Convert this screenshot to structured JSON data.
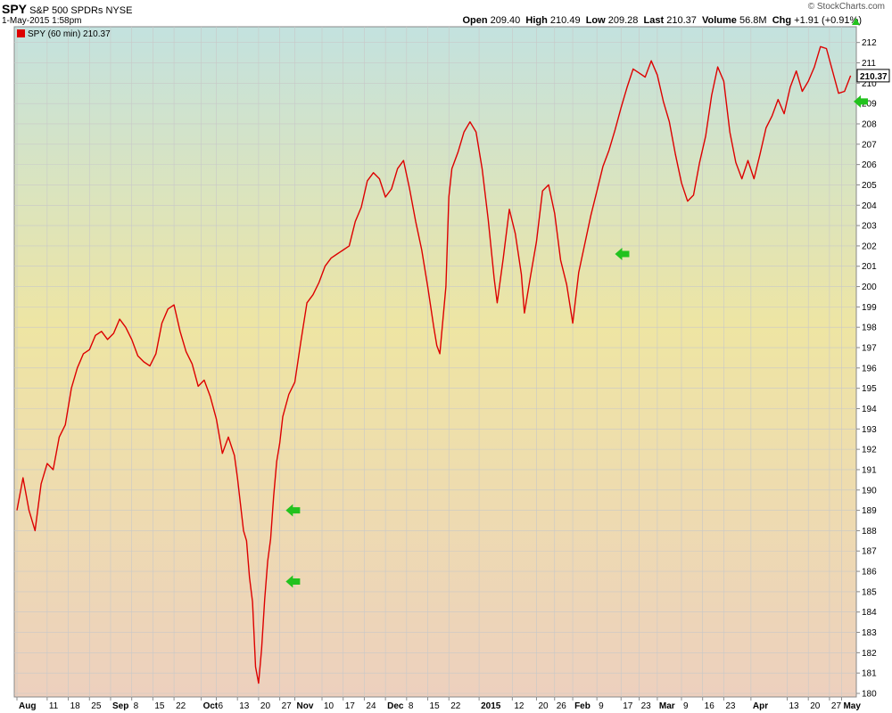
{
  "header": {
    "symbol": "SPY",
    "name": "S&P 500 SPDRs",
    "exchange": "NYSE",
    "datetime": "1-May-2015 1:58pm",
    "brand": "© StockCharts.com",
    "open_label": "Open",
    "open": "209.40",
    "high_label": "High",
    "high": "210.49",
    "low_label": "Low",
    "low": "209.28",
    "last_label": "Last",
    "last": "210.37",
    "volume_label": "Volume",
    "volume": "56.8M",
    "chg_label": "Chg",
    "chg": "+1.91 (+0.91%)",
    "legend": "SPY (60 min) 210.37"
  },
  "colors": {
    "series": "#dd0000",
    "arrow": "#22c21e",
    "grid": "#c8c8c8"
  },
  "chart_data": {
    "type": "line",
    "ylim": [
      180,
      212.6
    ],
    "yticks": [
      180,
      181,
      182,
      183,
      184,
      185,
      186,
      187,
      188,
      189,
      190,
      191,
      192,
      193,
      194,
      195,
      196,
      197,
      198,
      199,
      200,
      201,
      202,
      203,
      204,
      205,
      206,
      207,
      208,
      209,
      210,
      211,
      212
    ],
    "last_value": "210.37",
    "x_range_days": [
      0,
      277
    ],
    "xticks": [
      {
        "label": "Aug",
        "day": 0,
        "major": true
      },
      {
        "label": "11",
        "day": 10
      },
      {
        "label": "18",
        "day": 17
      },
      {
        "label": "25",
        "day": 24
      },
      {
        "label": "Sep",
        "day": 31,
        "major": true
      },
      {
        "label": "8",
        "day": 38
      },
      {
        "label": "15",
        "day": 45
      },
      {
        "label": "22",
        "day": 52
      },
      {
        "label": "Oct",
        "day": 61,
        "major": true
      },
      {
        "label": "6",
        "day": 66
      },
      {
        "label": "13",
        "day": 73
      },
      {
        "label": "20",
        "day": 80
      },
      {
        "label": "27",
        "day": 87
      },
      {
        "label": "Nov",
        "day": 92,
        "major": true
      },
      {
        "label": "10",
        "day": 101
      },
      {
        "label": "17",
        "day": 108
      },
      {
        "label": "24",
        "day": 115
      },
      {
        "label": "Dec",
        "day": 122,
        "major": true
      },
      {
        "label": "8",
        "day": 129
      },
      {
        "label": "15",
        "day": 136
      },
      {
        "label": "22",
        "day": 143
      },
      {
        "label": "2015",
        "day": 153,
        "major": true
      },
      {
        "label": "12",
        "day": 164
      },
      {
        "label": "20",
        "day": 172
      },
      {
        "label": "26",
        "day": 178
      },
      {
        "label": "Feb",
        "day": 184,
        "major": true
      },
      {
        "label": "9",
        "day": 192
      },
      {
        "label": "17",
        "day": 200
      },
      {
        "label": "23",
        "day": 206
      },
      {
        "label": "Mar",
        "day": 212,
        "major": true
      },
      {
        "label": "9",
        "day": 220
      },
      {
        "label": "16",
        "day": 227
      },
      {
        "label": "23",
        "day": 234
      },
      {
        "label": "Apr",
        "day": 243,
        "major": true
      },
      {
        "label": "13",
        "day": 255
      },
      {
        "label": "20",
        "day": 262
      },
      {
        "label": "27",
        "day": 269
      },
      {
        "label": "May",
        "day": 273,
        "major": true
      }
    ],
    "series": [
      {
        "name": "SPY (60 min)",
        "points": [
          [
            0,
            189
          ],
          [
            2,
            190.6
          ],
          [
            4,
            189
          ],
          [
            6,
            188
          ],
          [
            8,
            190.3
          ],
          [
            10,
            191.3
          ],
          [
            12,
            191
          ],
          [
            14,
            192.6
          ],
          [
            16,
            193.2
          ],
          [
            18,
            195
          ],
          [
            20,
            196
          ],
          [
            22,
            196.7
          ],
          [
            24,
            196.9
          ],
          [
            26,
            197.6
          ],
          [
            28,
            197.8
          ],
          [
            30,
            197.4
          ],
          [
            32,
            197.7
          ],
          [
            34,
            198.4
          ],
          [
            36,
            198
          ],
          [
            38,
            197.4
          ],
          [
            40,
            196.6
          ],
          [
            42,
            196.3
          ],
          [
            44,
            196.1
          ],
          [
            46,
            196.7
          ],
          [
            48,
            198.2
          ],
          [
            50,
            198.9
          ],
          [
            52,
            199.1
          ],
          [
            54,
            197.8
          ],
          [
            56,
            196.8
          ],
          [
            58,
            196.2
          ],
          [
            60,
            195.1
          ],
          [
            62,
            195.4
          ],
          [
            64,
            194.6
          ],
          [
            66,
            193.5
          ],
          [
            68,
            191.8
          ],
          [
            70,
            192.6
          ],
          [
            72,
            191.7
          ],
          [
            73,
            190.6
          ],
          [
            75,
            188
          ],
          [
            76,
            187.5
          ],
          [
            77,
            185.7
          ],
          [
            78,
            184.5
          ],
          [
            79,
            181.3
          ],
          [
            80,
            180.5
          ],
          [
            81,
            182.2
          ],
          [
            82,
            184.6
          ],
          [
            83,
            186.5
          ],
          [
            84,
            187.6
          ],
          [
            85,
            189.7
          ],
          [
            86,
            191.4
          ],
          [
            87,
            192.3
          ],
          [
            88,
            193.6
          ],
          [
            90,
            194.7
          ],
          [
            92,
            195.3
          ],
          [
            94,
            197.3
          ],
          [
            96,
            199.2
          ],
          [
            98,
            199.6
          ],
          [
            100,
            200.2
          ],
          [
            102,
            201
          ],
          [
            104,
            201.4
          ],
          [
            106,
            201.6
          ],
          [
            108,
            201.8
          ],
          [
            110,
            202
          ],
          [
            112,
            203.2
          ],
          [
            114,
            203.9
          ],
          [
            116,
            205.2
          ],
          [
            118,
            205.6
          ],
          [
            120,
            205.3
          ],
          [
            122,
            204.4
          ],
          [
            124,
            204.8
          ],
          [
            126,
            205.8
          ],
          [
            128,
            206.2
          ],
          [
            130,
            204.8
          ],
          [
            132,
            203.2
          ],
          [
            134,
            201.8
          ],
          [
            136,
            200
          ],
          [
            138,
            198
          ],
          [
            139,
            197.1
          ],
          [
            140,
            196.7
          ],
          [
            142,
            200
          ],
          [
            143,
            204.4
          ],
          [
            144,
            205.8
          ],
          [
            146,
            206.6
          ],
          [
            148,
            207.6
          ],
          [
            150,
            208.1
          ],
          [
            152,
            207.6
          ],
          [
            154,
            205.8
          ],
          [
            156,
            203.3
          ],
          [
            158,
            200.4
          ],
          [
            159,
            199.2
          ],
          [
            161,
            201.4
          ],
          [
            163,
            203.8
          ],
          [
            165,
            202.6
          ],
          [
            167,
            200.6
          ],
          [
            168,
            198.7
          ],
          [
            170,
            200.5
          ],
          [
            172,
            202.2
          ],
          [
            174,
            204.7
          ],
          [
            176,
            205
          ],
          [
            178,
            203.6
          ],
          [
            180,
            201.3
          ],
          [
            182,
            200.1
          ],
          [
            184,
            198.2
          ],
          [
            186,
            200.7
          ],
          [
            188,
            202.1
          ],
          [
            190,
            203.5
          ],
          [
            192,
            204.7
          ],
          [
            194,
            205.9
          ],
          [
            196,
            206.7
          ],
          [
            198,
            207.7
          ],
          [
            200,
            208.8
          ],
          [
            202,
            209.8
          ],
          [
            204,
            210.7
          ],
          [
            206,
            210.5
          ],
          [
            208,
            210.3
          ],
          [
            210,
            211.1
          ],
          [
            212,
            210.4
          ],
          [
            214,
            209.1
          ],
          [
            216,
            208.1
          ],
          [
            218,
            206.5
          ],
          [
            220,
            205.1
          ],
          [
            222,
            204.2
          ],
          [
            224,
            204.5
          ],
          [
            226,
            206.1
          ],
          [
            228,
            207.4
          ],
          [
            230,
            209.4
          ],
          [
            232,
            210.8
          ],
          [
            234,
            210.1
          ],
          [
            236,
            207.6
          ],
          [
            238,
            206.1
          ],
          [
            240,
            205.3
          ],
          [
            242,
            206.2
          ],
          [
            244,
            205.3
          ],
          [
            246,
            206.5
          ],
          [
            248,
            207.8
          ],
          [
            250,
            208.4
          ],
          [
            252,
            209.2
          ],
          [
            254,
            208.5
          ],
          [
            256,
            209.8
          ],
          [
            258,
            210.6
          ],
          [
            260,
            209.6
          ],
          [
            262,
            210.1
          ],
          [
            264,
            210.8
          ],
          [
            266,
            211.8
          ],
          [
            268,
            211.7
          ],
          [
            270,
            210.6
          ],
          [
            272,
            209.5
          ],
          [
            274,
            209.6
          ],
          [
            276,
            210.37
          ]
        ]
      }
    ],
    "annotations": [
      {
        "type": "arrow",
        "day": 89,
        "value": 189.0
      },
      {
        "type": "arrow",
        "day": 89,
        "value": 185.5
      },
      {
        "type": "arrow",
        "day": 198,
        "value": 201.6
      },
      {
        "type": "arrow",
        "day": 277,
        "value": 209.1
      }
    ]
  }
}
